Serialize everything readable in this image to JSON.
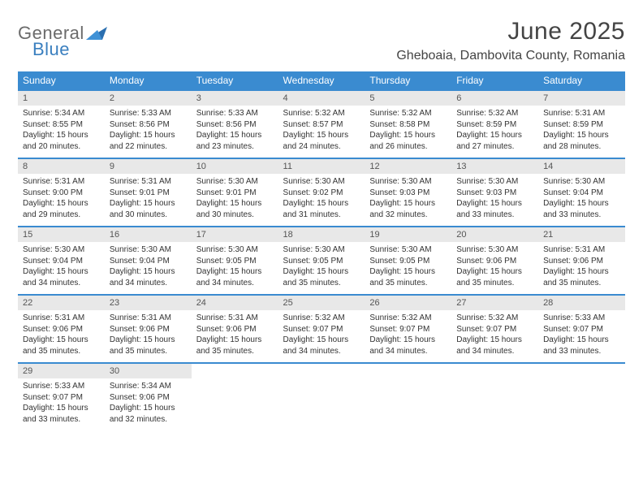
{
  "logo": {
    "text1": "General",
    "text2": "Blue"
  },
  "title": "June 2025",
  "subtitle": "Gheboaia, Dambovita County, Romania",
  "day_headers": [
    "Sunday",
    "Monday",
    "Tuesday",
    "Wednesday",
    "Thursday",
    "Friday",
    "Saturday"
  ],
  "colors": {
    "header_bg": "#3a8bd0",
    "row_border": "#3a8bd0",
    "daynum_bg": "#e8e8e8",
    "logo_gray": "#6b6b6b",
    "logo_blue": "#3a7fbf"
  },
  "weeks": [
    [
      {
        "n": "1",
        "sr": "Sunrise: 5:34 AM",
        "ss": "Sunset: 8:55 PM",
        "dl1": "Daylight: 15 hours",
        "dl2": "and 20 minutes."
      },
      {
        "n": "2",
        "sr": "Sunrise: 5:33 AM",
        "ss": "Sunset: 8:56 PM",
        "dl1": "Daylight: 15 hours",
        "dl2": "and 22 minutes."
      },
      {
        "n": "3",
        "sr": "Sunrise: 5:33 AM",
        "ss": "Sunset: 8:56 PM",
        "dl1": "Daylight: 15 hours",
        "dl2": "and 23 minutes."
      },
      {
        "n": "4",
        "sr": "Sunrise: 5:32 AM",
        "ss": "Sunset: 8:57 PM",
        "dl1": "Daylight: 15 hours",
        "dl2": "and 24 minutes."
      },
      {
        "n": "5",
        "sr": "Sunrise: 5:32 AM",
        "ss": "Sunset: 8:58 PM",
        "dl1": "Daylight: 15 hours",
        "dl2": "and 26 minutes."
      },
      {
        "n": "6",
        "sr": "Sunrise: 5:32 AM",
        "ss": "Sunset: 8:59 PM",
        "dl1": "Daylight: 15 hours",
        "dl2": "and 27 minutes."
      },
      {
        "n": "7",
        "sr": "Sunrise: 5:31 AM",
        "ss": "Sunset: 8:59 PM",
        "dl1": "Daylight: 15 hours",
        "dl2": "and 28 minutes."
      }
    ],
    [
      {
        "n": "8",
        "sr": "Sunrise: 5:31 AM",
        "ss": "Sunset: 9:00 PM",
        "dl1": "Daylight: 15 hours",
        "dl2": "and 29 minutes."
      },
      {
        "n": "9",
        "sr": "Sunrise: 5:31 AM",
        "ss": "Sunset: 9:01 PM",
        "dl1": "Daylight: 15 hours",
        "dl2": "and 30 minutes."
      },
      {
        "n": "10",
        "sr": "Sunrise: 5:30 AM",
        "ss": "Sunset: 9:01 PM",
        "dl1": "Daylight: 15 hours",
        "dl2": "and 30 minutes."
      },
      {
        "n": "11",
        "sr": "Sunrise: 5:30 AM",
        "ss": "Sunset: 9:02 PM",
        "dl1": "Daylight: 15 hours",
        "dl2": "and 31 minutes."
      },
      {
        "n": "12",
        "sr": "Sunrise: 5:30 AM",
        "ss": "Sunset: 9:03 PM",
        "dl1": "Daylight: 15 hours",
        "dl2": "and 32 minutes."
      },
      {
        "n": "13",
        "sr": "Sunrise: 5:30 AM",
        "ss": "Sunset: 9:03 PM",
        "dl1": "Daylight: 15 hours",
        "dl2": "and 33 minutes."
      },
      {
        "n": "14",
        "sr": "Sunrise: 5:30 AM",
        "ss": "Sunset: 9:04 PM",
        "dl1": "Daylight: 15 hours",
        "dl2": "and 33 minutes."
      }
    ],
    [
      {
        "n": "15",
        "sr": "Sunrise: 5:30 AM",
        "ss": "Sunset: 9:04 PM",
        "dl1": "Daylight: 15 hours",
        "dl2": "and 34 minutes."
      },
      {
        "n": "16",
        "sr": "Sunrise: 5:30 AM",
        "ss": "Sunset: 9:04 PM",
        "dl1": "Daylight: 15 hours",
        "dl2": "and 34 minutes."
      },
      {
        "n": "17",
        "sr": "Sunrise: 5:30 AM",
        "ss": "Sunset: 9:05 PM",
        "dl1": "Daylight: 15 hours",
        "dl2": "and 34 minutes."
      },
      {
        "n": "18",
        "sr": "Sunrise: 5:30 AM",
        "ss": "Sunset: 9:05 PM",
        "dl1": "Daylight: 15 hours",
        "dl2": "and 35 minutes."
      },
      {
        "n": "19",
        "sr": "Sunrise: 5:30 AM",
        "ss": "Sunset: 9:05 PM",
        "dl1": "Daylight: 15 hours",
        "dl2": "and 35 minutes."
      },
      {
        "n": "20",
        "sr": "Sunrise: 5:30 AM",
        "ss": "Sunset: 9:06 PM",
        "dl1": "Daylight: 15 hours",
        "dl2": "and 35 minutes."
      },
      {
        "n": "21",
        "sr": "Sunrise: 5:31 AM",
        "ss": "Sunset: 9:06 PM",
        "dl1": "Daylight: 15 hours",
        "dl2": "and 35 minutes."
      }
    ],
    [
      {
        "n": "22",
        "sr": "Sunrise: 5:31 AM",
        "ss": "Sunset: 9:06 PM",
        "dl1": "Daylight: 15 hours",
        "dl2": "and 35 minutes."
      },
      {
        "n": "23",
        "sr": "Sunrise: 5:31 AM",
        "ss": "Sunset: 9:06 PM",
        "dl1": "Daylight: 15 hours",
        "dl2": "and 35 minutes."
      },
      {
        "n": "24",
        "sr": "Sunrise: 5:31 AM",
        "ss": "Sunset: 9:06 PM",
        "dl1": "Daylight: 15 hours",
        "dl2": "and 35 minutes."
      },
      {
        "n": "25",
        "sr": "Sunrise: 5:32 AM",
        "ss": "Sunset: 9:07 PM",
        "dl1": "Daylight: 15 hours",
        "dl2": "and 34 minutes."
      },
      {
        "n": "26",
        "sr": "Sunrise: 5:32 AM",
        "ss": "Sunset: 9:07 PM",
        "dl1": "Daylight: 15 hours",
        "dl2": "and 34 minutes."
      },
      {
        "n": "27",
        "sr": "Sunrise: 5:32 AM",
        "ss": "Sunset: 9:07 PM",
        "dl1": "Daylight: 15 hours",
        "dl2": "and 34 minutes."
      },
      {
        "n": "28",
        "sr": "Sunrise: 5:33 AM",
        "ss": "Sunset: 9:07 PM",
        "dl1": "Daylight: 15 hours",
        "dl2": "and 33 minutes."
      }
    ],
    [
      {
        "n": "29",
        "sr": "Sunrise: 5:33 AM",
        "ss": "Sunset: 9:07 PM",
        "dl1": "Daylight: 15 hours",
        "dl2": "and 33 minutes."
      },
      {
        "n": "30",
        "sr": "Sunrise: 5:34 AM",
        "ss": "Sunset: 9:06 PM",
        "dl1": "Daylight: 15 hours",
        "dl2": "and 32 minutes."
      },
      {
        "empty": true
      },
      {
        "empty": true
      },
      {
        "empty": true
      },
      {
        "empty": true
      },
      {
        "empty": true
      }
    ]
  ]
}
